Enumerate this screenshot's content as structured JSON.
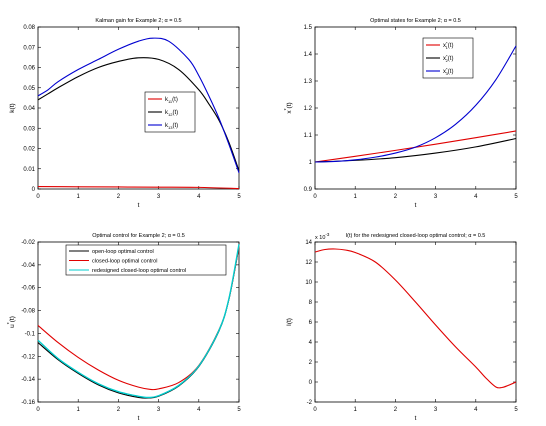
{
  "chart_data": [
    {
      "type": "line",
      "title": "Kalman gain for Example 2; α = 0.5",
      "xlabel": "t",
      "ylabel": "k(t)",
      "xlim": [
        0,
        5
      ],
      "ylim": [
        0,
        0.08
      ],
      "xticks": [
        "0",
        "1",
        "2",
        "3",
        "4",
        "5"
      ],
      "yticks": [
        "0",
        "0.01",
        "0.02",
        "0.03",
        "0.04",
        "0.05",
        "0.06",
        "0.07",
        "0.08"
      ],
      "legend_position": "right",
      "grid": false,
      "series": [
        {
          "name": "k11(t)",
          "legend_main": "k",
          "legend_sub": "11",
          "legend_tail": "(t)",
          "color": "#e00000",
          "x": [
            0,
            1,
            2,
            3,
            4,
            5
          ],
          "y": [
            0.0012,
            0.0011,
            0.001,
            0.0009,
            0.0008,
            0.0002
          ]
        },
        {
          "name": "k12(t)",
          "legend_main": "k",
          "legend_sub": "12",
          "legend_tail": "(t)",
          "color": "#000000",
          "x": [
            0,
            0.25,
            0.5,
            1,
            1.5,
            2,
            2.5,
            3,
            3.5,
            4,
            4.25,
            4.5,
            4.75,
            5
          ],
          "y": [
            0.044,
            0.047,
            0.05,
            0.0555,
            0.06,
            0.063,
            0.0648,
            0.064,
            0.059,
            0.049,
            0.042,
            0.034,
            0.023,
            0.009
          ]
        },
        {
          "name": "k13(t)",
          "legend_main": "k",
          "legend_sub": "13",
          "legend_tail": "(t)",
          "color": "#0000d0",
          "x": [
            0,
            0.25,
            0.5,
            1,
            1.5,
            2,
            2.5,
            2.85,
            3.25,
            3.75,
            4,
            4.25,
            4.5,
            4.75,
            5
          ],
          "y": [
            0.046,
            0.049,
            0.053,
            0.059,
            0.064,
            0.069,
            0.073,
            0.0745,
            0.073,
            0.064,
            0.056,
            0.046,
            0.035,
            0.022,
            0.008
          ]
        }
      ]
    },
    {
      "type": "line",
      "title": "Optimal states for Example 2; α = 0.5",
      "xlabel": "t",
      "ylabel": "x*(t)",
      "ylabel_main": "x",
      "ylabel_tail": "(t)",
      "xlim": [
        0,
        5
      ],
      "ylim": [
        0.9,
        1.5
      ],
      "xticks": [
        "0",
        "1",
        "2",
        "3",
        "4",
        "5"
      ],
      "yticks": [
        "0.9",
        "1",
        "1.1",
        "1.2",
        "1.3",
        "1.4",
        "1.5"
      ],
      "legend_position": "top-right",
      "grid": false,
      "series": [
        {
          "name": "x1*(t)",
          "legend_main": "x",
          "legend_sub": "1",
          "legend_tail": "(t)",
          "color": "#e00000",
          "x": [
            0,
            1,
            2,
            3,
            4,
            5
          ],
          "y": [
            1.0,
            1.021,
            1.043,
            1.066,
            1.09,
            1.115
          ]
        },
        {
          "name": "x2*(t)",
          "legend_main": "x",
          "legend_sub": "2",
          "legend_tail": "(t)",
          "color": "#000000",
          "x": [
            0,
            1,
            2,
            3,
            4,
            5
          ],
          "y": [
            1.0,
            1.006,
            1.016,
            1.033,
            1.056,
            1.087
          ]
        },
        {
          "name": "x3*(t)",
          "legend_main": "x",
          "legend_sub": "3",
          "legend_tail": "(t)",
          "color": "#0000d0",
          "x": [
            0,
            0.5,
            1,
            1.5,
            2,
            2.5,
            3,
            3.5,
            4,
            4.5,
            5
          ],
          "y": [
            1.0,
            1.002,
            1.008,
            1.018,
            1.033,
            1.055,
            1.09,
            1.14,
            1.21,
            1.305,
            1.43
          ]
        }
      ]
    },
    {
      "type": "line",
      "title": "Optimal control for Example 2; α = 0.5",
      "xlabel": "t",
      "ylabel": "u*(t)",
      "ylabel_main": "u",
      "ylabel_tail": "(t)",
      "xlim": [
        0,
        5
      ],
      "ylim": [
        -0.16,
        -0.02
      ],
      "xticks": [
        "0",
        "1",
        "2",
        "3",
        "4",
        "5"
      ],
      "yticks": [
        "-0.16",
        "-0.14",
        "-0.12",
        "-0.1",
        "-0.08",
        "-0.06",
        "-0.04",
        "-0.02"
      ],
      "legend_position": "top",
      "grid": false,
      "series": [
        {
          "name": "open-loop optimal control",
          "color": "#000000",
          "x": [
            0,
            0.5,
            1,
            1.5,
            2,
            2.5,
            2.75,
            3,
            3.5,
            4,
            4.5,
            4.75,
            5
          ],
          "y": [
            -0.108,
            -0.123,
            -0.135,
            -0.145,
            -0.152,
            -0.156,
            -0.1565,
            -0.155,
            -0.146,
            -0.129,
            -0.098,
            -0.07,
            -0.024
          ]
        },
        {
          "name": "closed-loop optimal control",
          "color": "#e00000",
          "x": [
            0,
            0.5,
            1,
            1.5,
            2,
            2.5,
            2.8,
            3,
            3.5,
            4,
            4.5,
            4.75,
            5
          ],
          "y": [
            -0.093,
            -0.108,
            -0.121,
            -0.132,
            -0.141,
            -0.147,
            -0.149,
            -0.1485,
            -0.143,
            -0.128,
            -0.097,
            -0.07,
            -0.024
          ]
        },
        {
          "name": "redesigned closed-loop optimal control",
          "color": "#00cccc",
          "x": [
            0,
            0.5,
            1,
            1.5,
            2,
            2.5,
            2.75,
            3,
            3.5,
            4,
            4.5,
            4.75,
            5
          ],
          "y": [
            -0.106,
            -0.122,
            -0.134,
            -0.144,
            -0.151,
            -0.155,
            -0.156,
            -0.1545,
            -0.1455,
            -0.1285,
            -0.0975,
            -0.0695,
            -0.022
          ]
        }
      ]
    },
    {
      "type": "line",
      "title": "I(t) for the redesigned closed-loop optimal control; α = 0.5",
      "xlabel": "t",
      "ylabel": "I(t)",
      "scale_label": "x 10",
      "scale_exp": "-3",
      "xlim": [
        0,
        5
      ],
      "ylim": [
        -2,
        14
      ],
      "xticks": [
        "0",
        "1",
        "2",
        "3",
        "4",
        "5"
      ],
      "yticks": [
        "-2",
        "0",
        "2",
        "4",
        "6",
        "8",
        "10",
        "12",
        "14"
      ],
      "grid": false,
      "series": [
        {
          "color": "#e00000",
          "x": [
            0,
            0.25,
            0.5,
            0.75,
            1,
            1.5,
            2,
            2.5,
            3,
            3.5,
            4,
            4.25,
            4.5,
            4.65,
            4.8,
            5
          ],
          "y": [
            13.0,
            13.25,
            13.3,
            13.2,
            12.95,
            12.0,
            10.2,
            8.0,
            5.7,
            3.5,
            1.5,
            0.4,
            -0.5,
            -0.55,
            -0.35,
            0.0
          ]
        }
      ]
    }
  ]
}
